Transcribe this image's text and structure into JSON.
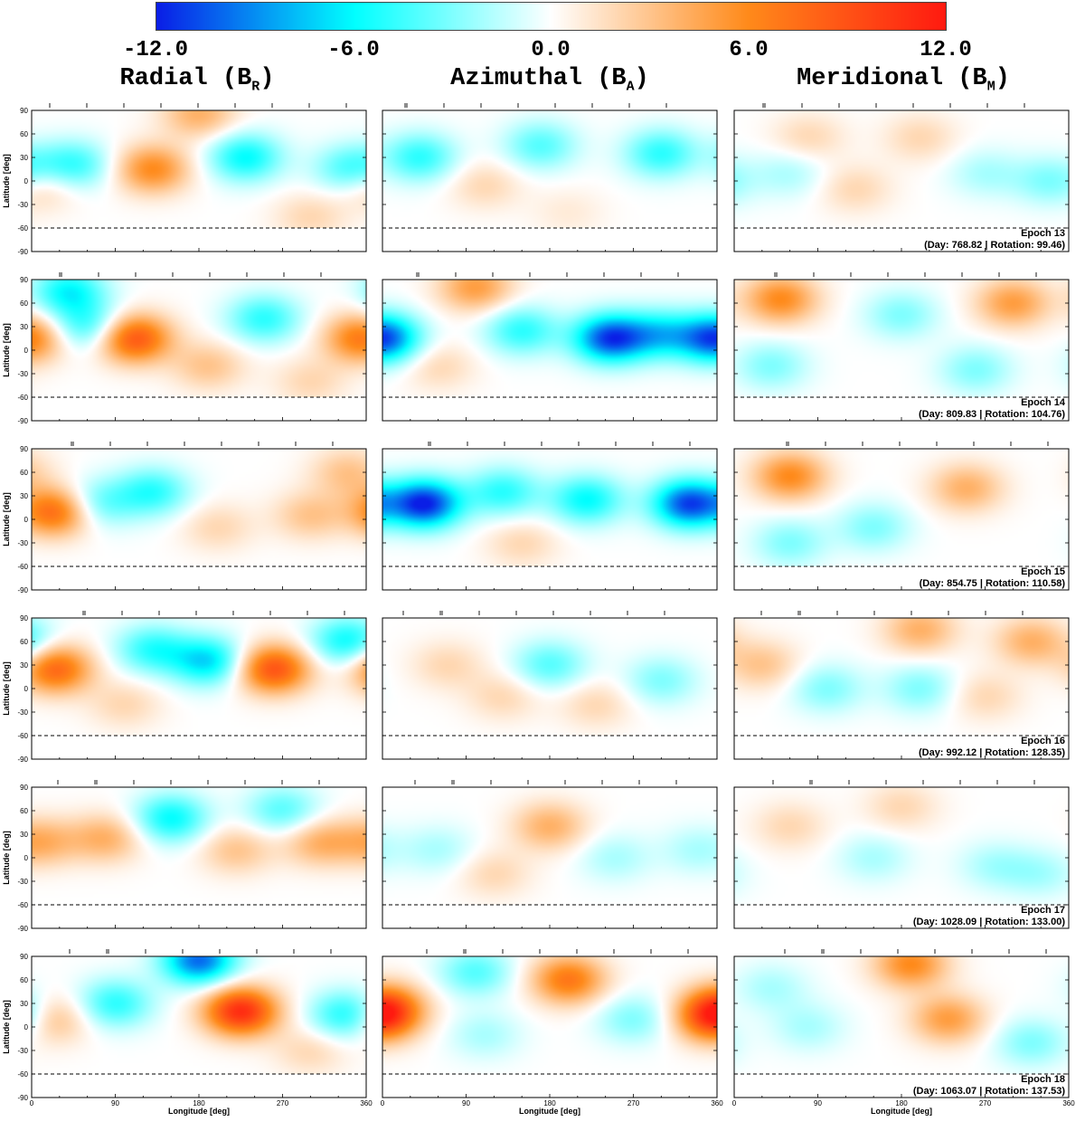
{
  "colorbar": {
    "ticks": [
      {
        "value": -12,
        "label": "-12.0"
      },
      {
        "value": -6,
        "label": "-6.0"
      },
      {
        "value": 0,
        "label": "0.0"
      },
      {
        "value": 6,
        "label": "6.0"
      },
      {
        "value": 12,
        "label": "12.0"
      }
    ],
    "colors": [
      "#0a1ee6",
      "#00ffff",
      "#ffffff",
      "#ff8a1a",
      "#ff1a10"
    ]
  },
  "columns": [
    {
      "name": "Radial",
      "symbol": "R"
    },
    {
      "name": "Azimuthal",
      "symbol": "A"
    },
    {
      "name": "Meridional",
      "symbol": "M"
    }
  ],
  "chart_data": {
    "type": "heatmap",
    "x_axis": {
      "label": "Longitude [deg]",
      "range": [
        0,
        360
      ],
      "ticks": [
        "0",
        "90",
        "180",
        "270",
        "360"
      ]
    },
    "y_axis": {
      "label": "Latitude [deg]",
      "range": [
        -90,
        90
      ],
      "ticks": [
        "90",
        "60",
        "30",
        "0",
        "-30",
        "-60",
        "-90"
      ]
    },
    "visibility_cutoff_latitude": -60,
    "value_range": [
      -12,
      12
    ],
    "epochs": [
      {
        "epoch": "Epoch 13",
        "info": "(Day: 768.82 | Rotation: 99.46)",
        "radial": [
          {
            "lon": 45,
            "lat": 20,
            "v": -5
          },
          {
            "lon": 130,
            "lat": 15,
            "v": 6
          },
          {
            "lon": 230,
            "lat": 30,
            "v": -6
          },
          {
            "lon": 345,
            "lat": 15,
            "v": -5
          },
          {
            "lon": 180,
            "lat": 85,
            "v": 4
          },
          {
            "lon": 10,
            "lat": -5,
            "v": 3
          },
          {
            "lon": 300,
            "lat": -45,
            "v": 2
          }
        ],
        "azimuthal": [
          {
            "lon": 40,
            "lat": 30,
            "v": -5
          },
          {
            "lon": 170,
            "lat": 45,
            "v": -4
          },
          {
            "lon": 300,
            "lat": 35,
            "v": -5
          },
          {
            "lon": 110,
            "lat": -5,
            "v": 2
          },
          {
            "lon": 200,
            "lat": -40,
            "v": 1
          }
        ],
        "meridional": [
          {
            "lon": 80,
            "lat": 55,
            "v": 2
          },
          {
            "lon": 200,
            "lat": 55,
            "v": 2
          },
          {
            "lon": 130,
            "lat": -10,
            "v": 2
          },
          {
            "lon": 60,
            "lat": 10,
            "v": -2
          },
          {
            "lon": 270,
            "lat": 10,
            "v": -2
          },
          {
            "lon": 340,
            "lat": 0,
            "v": -3
          }
        ]
      },
      {
        "epoch": "Epoch 14",
        "info": "(Day: 809.83 | Rotation: 104.76)",
        "radial": [
          {
            "lon": 110,
            "lat": 15,
            "v": 9
          },
          {
            "lon": 355,
            "lat": 15,
            "v": 7
          },
          {
            "lon": 40,
            "lat": 75,
            "v": -6
          },
          {
            "lon": 60,
            "lat": 30,
            "v": -5
          },
          {
            "lon": 250,
            "lat": 40,
            "v": -5
          },
          {
            "lon": 190,
            "lat": -20,
            "v": 3
          },
          {
            "lon": 300,
            "lat": -40,
            "v": 2
          }
        ],
        "azimuthal": [
          {
            "lon": 0,
            "lat": 15,
            "v": -11
          },
          {
            "lon": 245,
            "lat": 15,
            "v": -11
          },
          {
            "lon": 150,
            "lat": 25,
            "v": -5
          },
          {
            "lon": 300,
            "lat": 20,
            "v": -6
          },
          {
            "lon": 100,
            "lat": 80,
            "v": 5
          },
          {
            "lon": 60,
            "lat": -20,
            "v": 2
          }
        ],
        "meridional": [
          {
            "lon": 50,
            "lat": 65,
            "v": 6
          },
          {
            "lon": 300,
            "lat": 60,
            "v": 5
          },
          {
            "lon": 180,
            "lat": 45,
            "v": -3
          },
          {
            "lon": 40,
            "lat": -20,
            "v": -3
          },
          {
            "lon": 260,
            "lat": -25,
            "v": -3
          }
        ]
      },
      {
        "epoch": "Epoch 15",
        "info": "(Day: 854.75 | Rotation: 110.58)",
        "radial": [
          {
            "lon": 25,
            "lat": 10,
            "v": 8
          },
          {
            "lon": 130,
            "lat": 35,
            "v": -5
          },
          {
            "lon": 200,
            "lat": -10,
            "v": 2
          },
          {
            "lon": 300,
            "lat": 5,
            "v": 3
          },
          {
            "lon": 340,
            "lat": 60,
            "v": 3
          },
          {
            "lon": 70,
            "lat": 20,
            "v": -4
          }
        ],
        "azimuthal": [
          {
            "lon": 45,
            "lat": 20,
            "v": -12
          },
          {
            "lon": 330,
            "lat": 20,
            "v": -11
          },
          {
            "lon": 220,
            "lat": 25,
            "v": -6
          },
          {
            "lon": 130,
            "lat": 35,
            "v": -5
          },
          {
            "lon": 150,
            "lat": -30,
            "v": 2
          }
        ],
        "meridional": [
          {
            "lon": 60,
            "lat": 55,
            "v": 6
          },
          {
            "lon": 250,
            "lat": 40,
            "v": 4
          },
          {
            "lon": 150,
            "lat": -10,
            "v": -3
          },
          {
            "lon": 60,
            "lat": -30,
            "v": -3
          }
        ]
      },
      {
        "epoch": "Epoch 16",
        "info": "(Day: 992.12 | Rotation: 128.35)",
        "radial": [
          {
            "lon": 25,
            "lat": 25,
            "v": 8
          },
          {
            "lon": 260,
            "lat": 25,
            "v": 9
          },
          {
            "lon": 130,
            "lat": 50,
            "v": -5
          },
          {
            "lon": 190,
            "lat": 35,
            "v": -7
          },
          {
            "lon": 340,
            "lat": 60,
            "v": -6
          },
          {
            "lon": 100,
            "lat": -20,
            "v": 2
          }
        ],
        "azimuthal": [
          {
            "lon": 70,
            "lat": 30,
            "v": 2
          },
          {
            "lon": 180,
            "lat": 30,
            "v": -4
          },
          {
            "lon": 300,
            "lat": 10,
            "v": -3
          },
          {
            "lon": 130,
            "lat": -10,
            "v": 2
          },
          {
            "lon": 230,
            "lat": -20,
            "v": 2
          }
        ],
        "meridional": [
          {
            "lon": 200,
            "lat": 75,
            "v": 4
          },
          {
            "lon": 320,
            "lat": 60,
            "v": 4
          },
          {
            "lon": 30,
            "lat": 30,
            "v": 3
          },
          {
            "lon": 100,
            "lat": 0,
            "v": -3
          },
          {
            "lon": 200,
            "lat": 0,
            "v": -3
          },
          {
            "lon": 270,
            "lat": -10,
            "v": 2
          }
        ]
      },
      {
        "epoch": "Epoch 17",
        "info": "(Day: 1028.09 | Rotation: 133.00)",
        "radial": [
          {
            "lon": 10,
            "lat": 20,
            "v": 4
          },
          {
            "lon": 80,
            "lat": 25,
            "v": 4
          },
          {
            "lon": 150,
            "lat": 50,
            "v": -6
          },
          {
            "lon": 220,
            "lat": 10,
            "v": 3
          },
          {
            "lon": 310,
            "lat": 20,
            "v": 4
          },
          {
            "lon": 270,
            "lat": 60,
            "v": -4
          }
        ],
        "azimuthal": [
          {
            "lon": 180,
            "lat": 40,
            "v": 4
          },
          {
            "lon": 60,
            "lat": 10,
            "v": -2
          },
          {
            "lon": 250,
            "lat": 0,
            "v": -2
          },
          {
            "lon": 120,
            "lat": -20,
            "v": 2
          },
          {
            "lon": 340,
            "lat": 10,
            "v": -2
          }
        ],
        "meridional": [
          {
            "lon": 180,
            "lat": 65,
            "v": 2
          },
          {
            "lon": 60,
            "lat": 40,
            "v": 2
          },
          {
            "lon": 150,
            "lat": 0,
            "v": -2
          },
          {
            "lon": 280,
            "lat": -10,
            "v": -2
          },
          {
            "lon": 330,
            "lat": -20,
            "v": -2
          }
        ]
      },
      {
        "epoch": "Epoch 18",
        "info": "(Day: 1063.07 | Rotation: 137.53)",
        "radial": [
          {
            "lon": 180,
            "lat": 85,
            "v": -10
          },
          {
            "lon": 225,
            "lat": 20,
            "v": 11
          },
          {
            "lon": 20,
            "lat": 10,
            "v": 4
          },
          {
            "lon": 90,
            "lat": 30,
            "v": -5
          },
          {
            "lon": 340,
            "lat": 15,
            "v": -6
          },
          {
            "lon": 300,
            "lat": -30,
            "v": 2
          }
        ],
        "azimuthal": [
          {
            "lon": 5,
            "lat": 25,
            "v": 7
          },
          {
            "lon": 355,
            "lat": 10,
            "v": 7
          },
          {
            "lon": 200,
            "lat": 60,
            "v": 7
          },
          {
            "lon": 100,
            "lat": 70,
            "v": -4
          },
          {
            "lon": 270,
            "lat": 10,
            "v": -3
          },
          {
            "lon": 110,
            "lat": -10,
            "v": -2
          }
        ],
        "meridional": [
          {
            "lon": 190,
            "lat": 80,
            "v": 6
          },
          {
            "lon": 230,
            "lat": 10,
            "v": 5
          },
          {
            "lon": 80,
            "lat": 0,
            "v": -2
          },
          {
            "lon": 320,
            "lat": -20,
            "v": -3
          },
          {
            "lon": 40,
            "lat": 50,
            "v": -2
          }
        ]
      }
    ]
  }
}
